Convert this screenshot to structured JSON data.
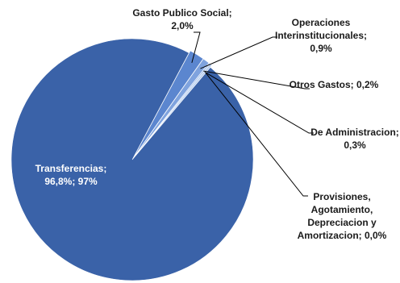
{
  "chart_data": {
    "type": "pie",
    "title": "",
    "slices": [
      {
        "name": "Transferencias",
        "value": 96.8,
        "label_lines": [
          "Transferencias;",
          "96,8%; 97%"
        ],
        "color": "#3a62a8"
      },
      {
        "name": "Gasto Publico Social",
        "value": 2.0,
        "label_lines": [
          "Gasto Publico Social;",
          "2,0%"
        ],
        "color": "#5b86cf"
      },
      {
        "name": "Operaciones Interinstitucionales",
        "value": 0.9,
        "label_lines": [
          "Operaciones",
          "Interinstitucionales;",
          "0,9%"
        ],
        "color": "#7fa3de"
      },
      {
        "name": "Otros Gastos",
        "value": 0.2,
        "label_lines": [
          "Otros Gastos; 0,2%"
        ],
        "color": "#9dbbe9"
      },
      {
        "name": "De Administracion",
        "value": 0.3,
        "label_lines": [
          "De Administracion;",
          "0,3%"
        ],
        "color": "#b8cff0"
      },
      {
        "name": "Provisiones, Agotamiento, Depreciacion y Amortizacion",
        "value": 0.0,
        "label_lines": [
          "Provisiones,",
          "Agotamiento,",
          "Depreciacion y",
          "Amortizacion; 0,0%"
        ],
        "color": "#d3e1f6"
      }
    ],
    "legend": "none"
  }
}
